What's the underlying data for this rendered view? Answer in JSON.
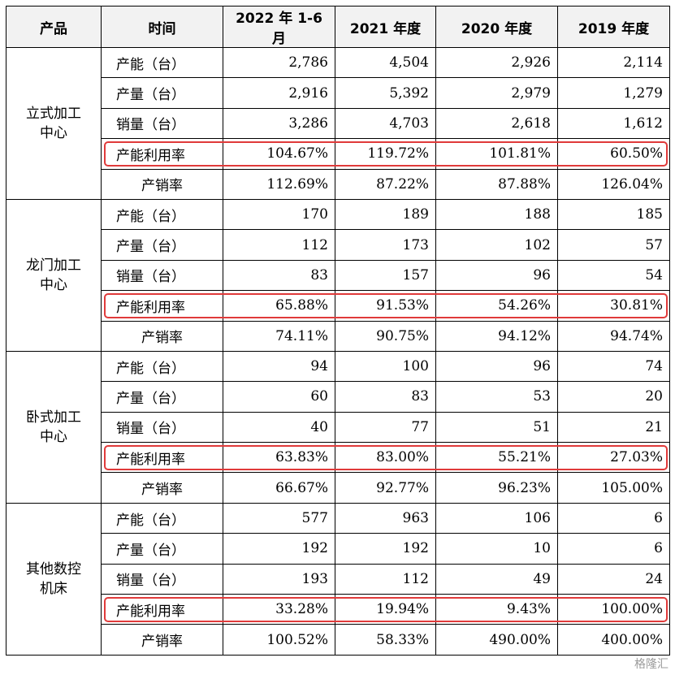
{
  "headers": [
    "产品",
    "时间",
    "2022 年 1-6 月",
    "2021 年度",
    "2020 年度",
    "2019 年度"
  ],
  "groups": [
    {
      "name": "立式加工中心",
      "rows": [
        {
          "label": "产能（台）",
          "values": [
            "2,786",
            "4,504",
            "2,926",
            "2,114"
          ]
        },
        {
          "label": "产量（台）",
          "values": [
            "2,916",
            "5,392",
            "2,979",
            "1,279"
          ]
        },
        {
          "label": "销量（台）",
          "values": [
            "3,286",
            "4,703",
            "2,618",
            "1,612"
          ]
        },
        {
          "label": "产能利用率",
          "values": [
            "104.67%",
            "119.72%",
            "101.81%",
            "60.50%"
          ],
          "highlight": true
        },
        {
          "label": "产销率",
          "values": [
            "112.69%",
            "87.22%",
            "87.88%",
            "126.04%"
          ]
        }
      ]
    },
    {
      "name": "龙门加工中心",
      "rows": [
        {
          "label": "产能（台）",
          "values": [
            "170",
            "189",
            "188",
            "185"
          ]
        },
        {
          "label": "产量（台）",
          "values": [
            "112",
            "173",
            "102",
            "57"
          ]
        },
        {
          "label": "销量（台）",
          "values": [
            "83",
            "157",
            "96",
            "54"
          ]
        },
        {
          "label": "产能利用率",
          "values": [
            "65.88%",
            "91.53%",
            "54.26%",
            "30.81%"
          ],
          "highlight": true
        },
        {
          "label": "产销率",
          "values": [
            "74.11%",
            "90.75%",
            "94.12%",
            "94.74%"
          ]
        }
      ]
    },
    {
      "name": "卧式加工中心",
      "rows": [
        {
          "label": "产能（台）",
          "values": [
            "94",
            "100",
            "96",
            "74"
          ]
        },
        {
          "label": "产量（台）",
          "values": [
            "60",
            "83",
            "53",
            "20"
          ]
        },
        {
          "label": "销量（台）",
          "values": [
            "40",
            "77",
            "51",
            "21"
          ]
        },
        {
          "label": "产能利用率",
          "values": [
            "63.83%",
            "83.00%",
            "55.21%",
            "27.03%"
          ],
          "highlight": true
        },
        {
          "label": "产销率",
          "values": [
            "66.67%",
            "92.77%",
            "96.23%",
            "105.00%"
          ]
        }
      ]
    },
    {
      "name": "其他数控机床",
      "rows": [
        {
          "label": "产能（台）",
          "values": [
            "577",
            "963",
            "106",
            "6"
          ]
        },
        {
          "label": "产量（台）",
          "values": [
            "192",
            "192",
            "10",
            "6"
          ]
        },
        {
          "label": "销量（台）",
          "values": [
            "193",
            "112",
            "49",
            "24"
          ]
        },
        {
          "label": "产能利用率",
          "values": [
            "33.28%",
            "19.94%",
            "9.43%",
            "100.00%"
          ],
          "highlight": true
        },
        {
          "label": "产销率",
          "values": [
            "100.52%",
            "58.33%",
            "490.00%",
            "400.00%"
          ]
        }
      ]
    }
  ],
  "highlight_color": "#e03a3a",
  "watermark": "格隆汇"
}
